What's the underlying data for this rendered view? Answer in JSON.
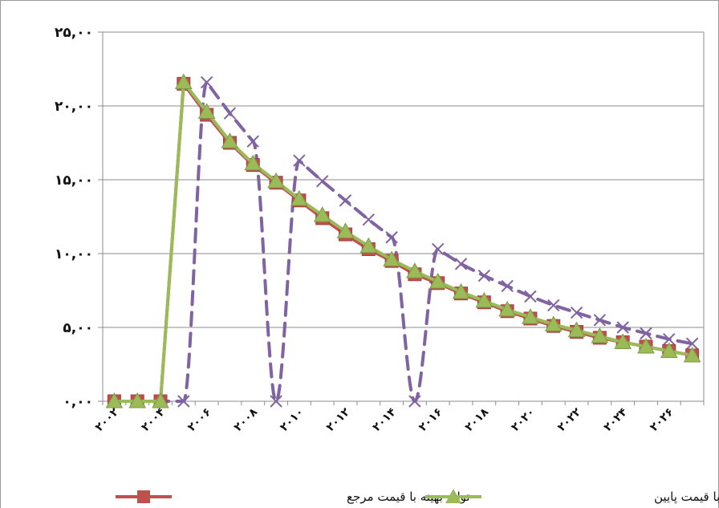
{
  "chart_data": {
    "type": "line",
    "title": "",
    "xlabel": "",
    "ylabel": "",
    "categories": [
      2002,
      2003,
      2004,
      2005,
      2006,
      2007,
      2008,
      2009,
      2010,
      2011,
      2012,
      2013,
      2014,
      2015,
      2016,
      2017,
      2018,
      2019,
      2020,
      2021,
      2022,
      2023,
      2024,
      2025,
      2026,
      2027
    ],
    "x_tick_labels": [
      "۲۰۰۲",
      "۲۰۰۴",
      "۲۰۰۶",
      "۲۰۰۸",
      "۲۰۱۰",
      "۲۰۱۲",
      "۲۰۱۴",
      "۲۰۱۶",
      "۲۰۱۸",
      "۲۰۲۰",
      "۲۰۲۲",
      "۲۰۲۴",
      "۲۰۲۶"
    ],
    "y_tick_labels": [
      "۰,۰۰",
      "۵,۰۰",
      "۱۰,۰۰",
      "۱۵,۰۰",
      "۲۰,۰۰",
      "۲۵,۰۰"
    ],
    "ylim": [
      0,
      25
    ],
    "grid": "horizontal",
    "legend_position": "bottom",
    "series": [
      {
        "name": "تولید بهینه با قیمت مرجع",
        "color": "#c0504d",
        "marker": "square",
        "values": [
          0,
          0,
          0,
          21.5,
          19.4,
          17.5,
          16.0,
          14.8,
          13.6,
          12.4,
          11.3,
          10.3,
          9.5,
          8.6,
          8.0,
          7.3,
          6.7,
          6.1,
          5.6,
          5.1,
          4.7,
          4.3,
          4.0,
          3.7,
          3.4,
          3.1
        ]
      },
      {
        "name": "تولید بهینه با قیمت پایین",
        "color": "#9bbb59",
        "marker": "triangle",
        "values": [
          0,
          0,
          0,
          21.6,
          19.6,
          17.6,
          16.1,
          14.9,
          13.7,
          12.6,
          11.5,
          10.5,
          9.6,
          8.8,
          8.1,
          7.4,
          6.8,
          6.2,
          5.7,
          5.2,
          4.8,
          4.4,
          4.0,
          3.7,
          3.4,
          3.1
        ]
      },
      {
        "name": "",
        "color": "#8064a2",
        "marker": "x",
        "dashed": true,
        "values": [
          0,
          0,
          0,
          0,
          21.6,
          19.5,
          17.6,
          0,
          16.3,
          14.9,
          13.6,
          12.3,
          11.1,
          0,
          10.3,
          9.3,
          8.5,
          7.8,
          7.1,
          6.5,
          6.0,
          5.5,
          5.0,
          4.6,
          4.2,
          3.9
        ]
      }
    ]
  }
}
